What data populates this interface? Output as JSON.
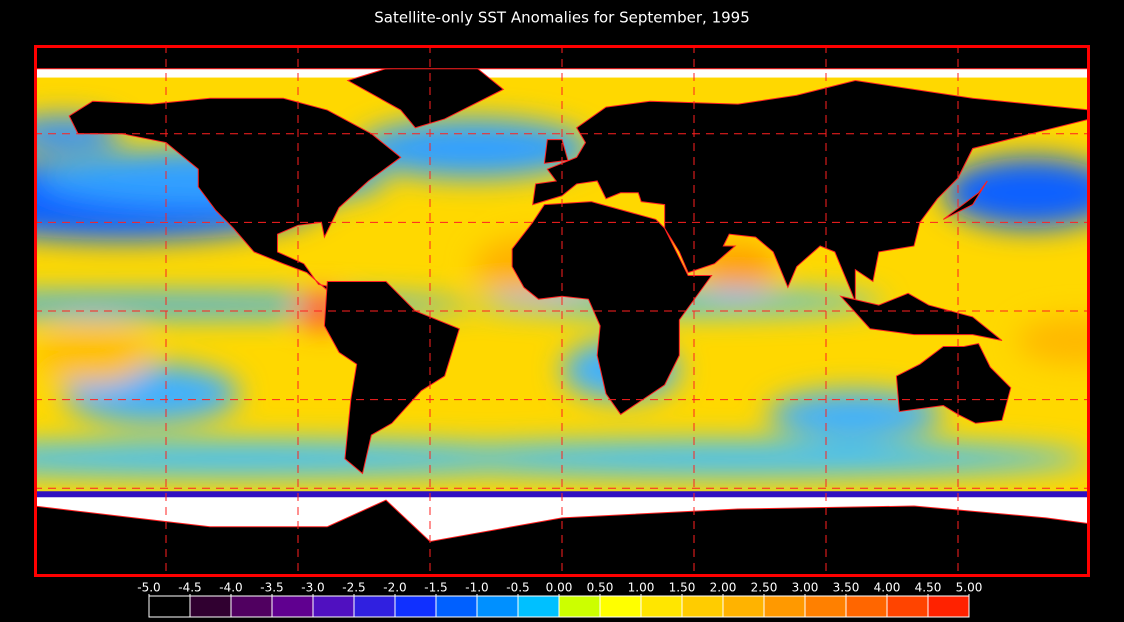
{
  "title": "Satellite-only SST Anomalies for September, 1995",
  "colorbar": {
    "ticks": [
      {
        "value": -5,
        "label": "-5.0"
      },
      {
        "value": -4.5,
        "label": "-4.5"
      },
      {
        "value": -4,
        "label": "-4.0"
      },
      {
        "value": -3.5,
        "label": "-3.5"
      },
      {
        "value": -3,
        "label": "-3.0"
      },
      {
        "value": -2.5,
        "label": "-2.5"
      },
      {
        "value": -2,
        "label": "-2.0"
      },
      {
        "value": -1.5,
        "label": "-1.5"
      },
      {
        "value": -1,
        "label": "-1.0"
      },
      {
        "value": -0.5,
        "label": "-0.5"
      },
      {
        "value": 0,
        "label": "0.00"
      },
      {
        "value": 0.5,
        "label": "0.50"
      },
      {
        "value": 1,
        "label": "1.00"
      },
      {
        "value": 1.5,
        "label": "1.50"
      },
      {
        "value": 2,
        "label": "2.00"
      },
      {
        "value": 2.5,
        "label": "2.50"
      },
      {
        "value": 3,
        "label": "3.00"
      },
      {
        "value": 3.5,
        "label": "3.50"
      },
      {
        "value": 4,
        "label": "4.00"
      },
      {
        "value": 4.5,
        "label": "4.50"
      },
      {
        "value": 5,
        "label": "5.00"
      }
    ],
    "colors": [
      "#000000",
      "#300030",
      "#500060",
      "#600090",
      "#5010c0",
      "#3020e0",
      "#1030ff",
      "#0060ff",
      "#0090ff",
      "#00c0ff",
      "#ccff00",
      "#ffff00",
      "#ffe600",
      "#ffcc00",
      "#ffb300",
      "#ff9900",
      "#ff8000",
      "#ff6600",
      "#ff4400",
      "#ff2200"
    ]
  }
}
